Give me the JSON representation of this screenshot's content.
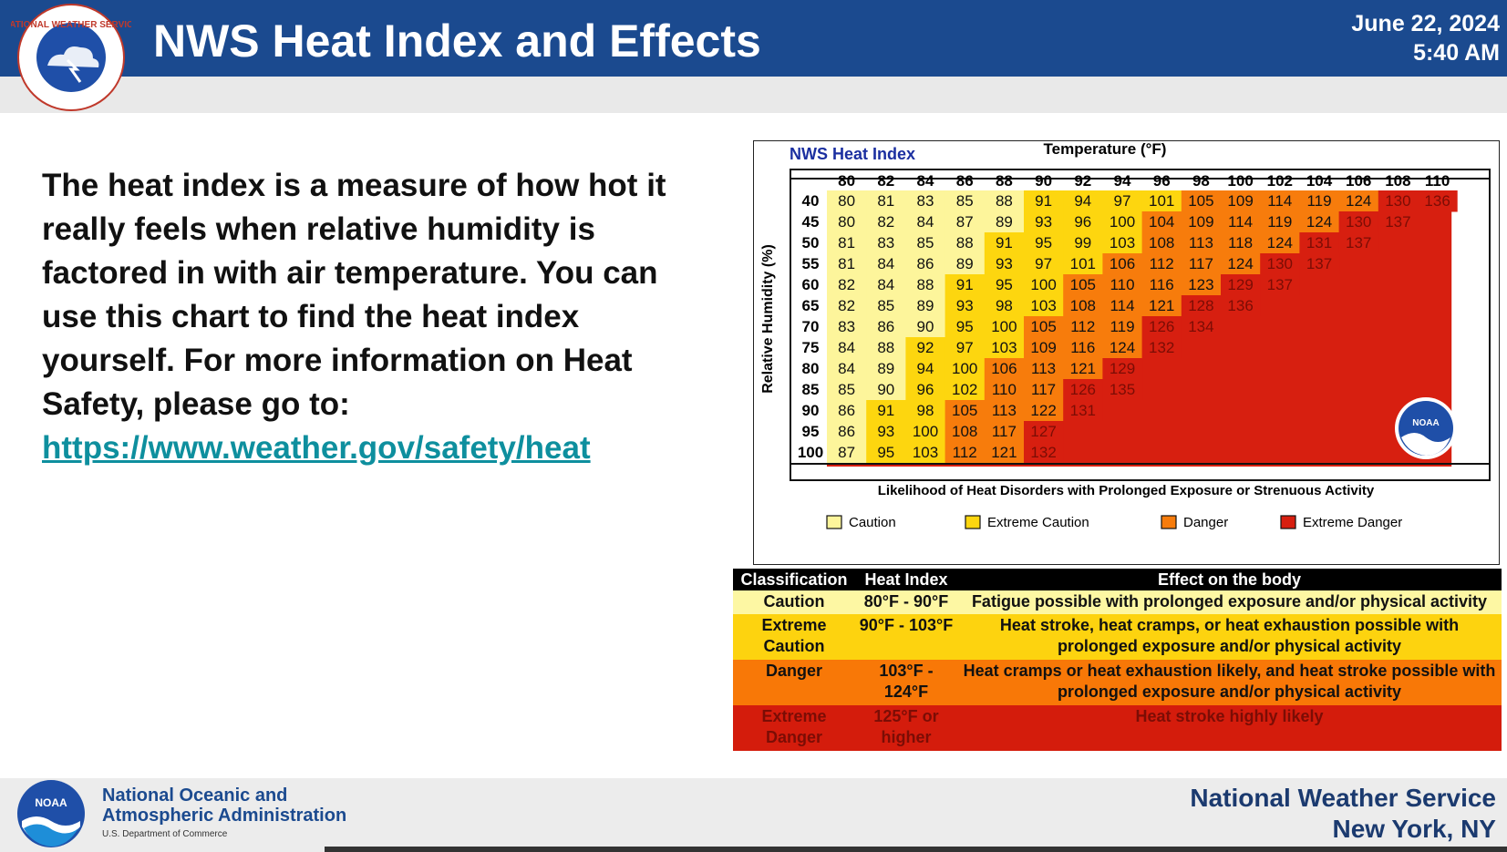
{
  "header": {
    "title": "NWS Heat Index and Effects",
    "date": "June 22, 2024",
    "time": "5:40 AM",
    "logo_text": "NATIONAL WEATHER SERVICE",
    "colors": {
      "bar": "#1b4a8f",
      "strip": "#e9e9e9"
    }
  },
  "intro": {
    "text": "The heat index is a measure of how hot it really feels when relative humidity is factored in with air temperature. You can use this chart to find the heat index yourself. For more information on Heat Safety, please go to:",
    "link": "https://www.weather.gov/safety/heat"
  },
  "heat_chart": {
    "title": "NWS Heat Index",
    "temp_axis_label": "Temperature (°F)",
    "rh_axis_label": "Relative Humidity (%)",
    "temperatures": [
      "80",
      "82",
      "84",
      "86",
      "88",
      "90",
      "92",
      "94",
      "96",
      "98",
      "100",
      "102",
      "104",
      "106",
      "108",
      "110"
    ],
    "humidities": [
      "40",
      "45",
      "50",
      "55",
      "60",
      "65",
      "70",
      "75",
      "80",
      "85",
      "90",
      "95",
      "100"
    ],
    "rows": [
      [
        "80",
        "81",
        "83",
        "85",
        "88",
        "91",
        "94",
        "97",
        "101",
        "105",
        "109",
        "114",
        "119",
        "124",
        "130",
        "136"
      ],
      [
        "80",
        "82",
        "84",
        "87",
        "89",
        "93",
        "96",
        "100",
        "104",
        "109",
        "114",
        "119",
        "124",
        "130",
        "137",
        ""
      ],
      [
        "81",
        "83",
        "85",
        "88",
        "91",
        "95",
        "99",
        "103",
        "108",
        "113",
        "118",
        "124",
        "131",
        "137",
        "",
        ""
      ],
      [
        "81",
        "84",
        "86",
        "89",
        "93",
        "97",
        "101",
        "106",
        "112",
        "117",
        "124",
        "130",
        "137",
        "",
        "",
        ""
      ],
      [
        "82",
        "84",
        "88",
        "91",
        "95",
        "100",
        "105",
        "110",
        "116",
        "123",
        "129",
        "137",
        "",
        "",
        "",
        ""
      ],
      [
        "82",
        "85",
        "89",
        "93",
        "98",
        "103",
        "108",
        "114",
        "121",
        "128",
        "136",
        "",
        "",
        "",
        "",
        ""
      ],
      [
        "83",
        "86",
        "90",
        "95",
        "100",
        "105",
        "112",
        "119",
        "126",
        "134",
        "",
        "",
        "",
        "",
        "",
        ""
      ],
      [
        "84",
        "88",
        "92",
        "97",
        "103",
        "109",
        "116",
        "124",
        "132",
        "",
        "",
        "",
        "",
        "",
        "",
        ""
      ],
      [
        "84",
        "89",
        "94",
        "100",
        "106",
        "113",
        "121",
        "129",
        "",
        "",
        "",
        "",
        "",
        "",
        "",
        ""
      ],
      [
        "85",
        "90",
        "96",
        "102",
        "110",
        "117",
        "126",
        "135",
        "",
        "",
        "",
        "",
        "",
        "",
        "",
        ""
      ],
      [
        "86",
        "91",
        "98",
        "105",
        "113",
        "122",
        "131",
        "",
        "",
        "",
        "",
        "",
        "",
        "",
        "",
        ""
      ],
      [
        "86",
        "93",
        "100",
        "108",
        "117",
        "127",
        "",
        "",
        "",
        "",
        "",
        "",
        "",
        "",
        "",
        ""
      ],
      [
        "87",
        "95",
        "103",
        "112",
        "121",
        "132",
        "",
        "",
        "",
        "",
        "",
        "",
        "",
        "",
        "",
        ""
      ]
    ],
    "likelihood_text": "Likelihood of Heat Disorders with Prolonged Exposure or Strenuous Activity",
    "legend": [
      {
        "label": "Caution",
        "color": "#fdf59b"
      },
      {
        "label": "Extreme Caution",
        "color": "#fdd60f"
      },
      {
        "label": "Danger",
        "color": "#f77c0c"
      },
      {
        "label": "Extreme Danger",
        "color": "#d71f10"
      }
    ],
    "noaa_badge": "NOAA"
  },
  "classification": {
    "headers": [
      "Classification",
      "Heat Index",
      "Effect on the body"
    ],
    "rows": [
      {
        "class": "Caution",
        "range": "80°F - 90°F",
        "effect": "Fatigue possible with prolonged exposure and/or physical activity"
      },
      {
        "class": "Extreme Caution",
        "range": "90°F - 103°F",
        "effect": "Heat stroke, heat cramps, or heat exhaustion possible with prolonged exposure and/or physical activity"
      },
      {
        "class": "Danger",
        "range": "103°F - 124°F",
        "effect": "Heat cramps or heat exhaustion likely, and heat stroke possible with prolonged exposure and/or physical activity"
      },
      {
        "class": "Extreme Danger",
        "range": "125°F or higher",
        "effect": "Heat stroke highly likely"
      }
    ]
  },
  "footer": {
    "noaa_badge": "NOAA",
    "org_line1": "National Oceanic and",
    "org_line2": "Atmospheric Administration",
    "dept": "U.S. Department of Commerce",
    "office_line1": "National Weather Service",
    "office_line2": "New York, NY"
  }
}
